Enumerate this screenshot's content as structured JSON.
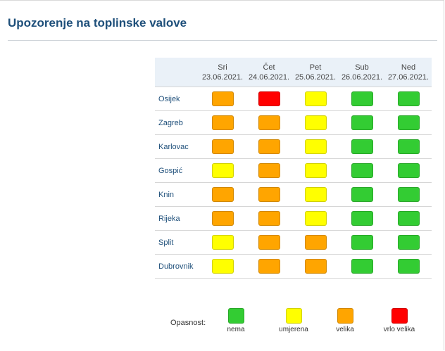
{
  "title": "Upozorenje na toplinske valove",
  "colors": {
    "nema": "#33cc33",
    "umjerena": "#ffff00",
    "velika": "#ffa500",
    "vrlo_velika": "#ff0000"
  },
  "days": [
    {
      "name": "Sri",
      "date": "23.06.2021."
    },
    {
      "name": "Čet",
      "date": "24.06.2021."
    },
    {
      "name": "Pet",
      "date": "25.06.2021."
    },
    {
      "name": "Sub",
      "date": "26.06.2021."
    },
    {
      "name": "Ned",
      "date": "27.06.2021."
    }
  ],
  "cities": [
    {
      "name": "Osijek",
      "levels": [
        "velika",
        "vrlo_velika",
        "umjerena",
        "nema",
        "nema"
      ]
    },
    {
      "name": "Zagreb",
      "levels": [
        "velika",
        "velika",
        "umjerena",
        "nema",
        "nema"
      ]
    },
    {
      "name": "Karlovac",
      "levels": [
        "velika",
        "velika",
        "umjerena",
        "nema",
        "nema"
      ]
    },
    {
      "name": "Gospić",
      "levels": [
        "umjerena",
        "velika",
        "umjerena",
        "nema",
        "nema"
      ]
    },
    {
      "name": "Knin",
      "levels": [
        "velika",
        "velika",
        "umjerena",
        "nema",
        "nema"
      ]
    },
    {
      "name": "Rijeka",
      "levels": [
        "velika",
        "velika",
        "umjerena",
        "nema",
        "nema"
      ]
    },
    {
      "name": "Split",
      "levels": [
        "umjerena",
        "velika",
        "velika",
        "nema",
        "nema"
      ]
    },
    {
      "name": "Dubrovnik",
      "levels": [
        "umjerena",
        "velika",
        "velika",
        "nema",
        "nema"
      ]
    }
  ],
  "legend": {
    "title": "Opasnost:",
    "items": [
      {
        "key": "nema",
        "label": "nema"
      },
      {
        "key": "umjerena",
        "label": "umjerena"
      },
      {
        "key": "velika",
        "label": "velika"
      },
      {
        "key": "vrlo_velika",
        "label": "vrlo velika"
      }
    ]
  }
}
